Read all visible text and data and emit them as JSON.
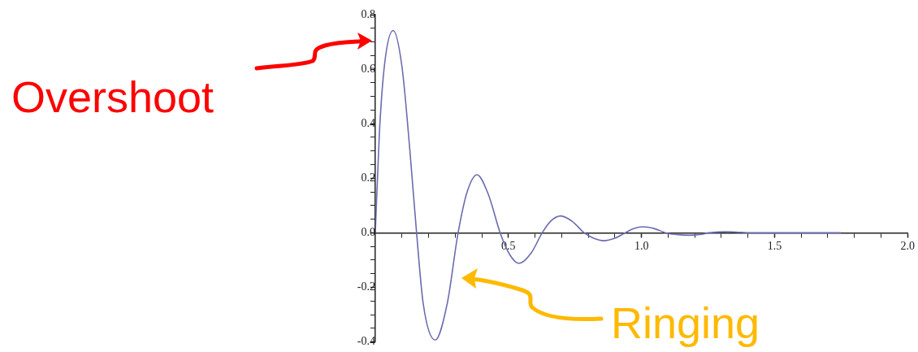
{
  "chart_data": {
    "type": "line",
    "x": [
      0,
      0.015,
      0.035,
      0.067,
      0.1,
      0.13,
      0.155,
      0.18,
      0.225,
      0.27,
      0.311,
      0.345,
      0.382,
      0.425,
      0.469,
      0.505,
      0.54,
      0.585,
      0.627,
      0.66,
      0.697,
      0.74,
      0.785,
      0.82,
      0.858,
      0.9,
      0.939,
      0.97,
      1.005,
      1.05,
      1.091,
      1.13,
      1.178,
      1.22,
      1.254,
      1.29,
      1.325,
      1.37,
      1.42,
      1.5,
      1.6,
      1.75
    ],
    "series": [
      {
        "color": "#6b6bb0",
        "values": [
          0,
          0.36,
          0.62,
          0.742,
          0.61,
          0.3,
          0,
          -0.26,
          -0.393,
          -0.26,
          0,
          0.15,
          0.213,
          0.14,
          0,
          -0.08,
          -0.112,
          -0.075,
          0,
          0.044,
          0.062,
          0.042,
          0,
          -0.02,
          -0.029,
          -0.02,
          0,
          0.015,
          0.022,
          0.015,
          0,
          -0.006,
          -0.009,
          -0.006,
          0,
          0.003,
          0.004,
          0.002,
          0,
          0,
          0,
          0
        ]
      }
    ],
    "xlim": [
      0,
      2
    ],
    "ylim": [
      -0.4,
      0.8
    ],
    "xticks": [
      {
        "value": 0.1,
        "label": null
      },
      {
        "value": 0.2,
        "label": null
      },
      {
        "value": 0.3,
        "label": null
      },
      {
        "value": 0.4,
        "label": null
      },
      {
        "value": 0.5,
        "label": "0.5"
      },
      {
        "value": 0.6,
        "label": null
      },
      {
        "value": 0.7,
        "label": null
      },
      {
        "value": 0.8,
        "label": null
      },
      {
        "value": 0.9,
        "label": null
      },
      {
        "value": 1,
        "label": "1.0"
      },
      {
        "value": 1.1,
        "label": null
      },
      {
        "value": 1.2,
        "label": null
      },
      {
        "value": 1.3,
        "label": null
      },
      {
        "value": 1.4,
        "label": null
      },
      {
        "value": 1.5,
        "label": "1.5"
      },
      {
        "value": 1.6,
        "label": null
      },
      {
        "value": 1.7,
        "label": null
      },
      {
        "value": 1.8,
        "label": null
      },
      {
        "value": 1.9,
        "label": null
      },
      {
        "value": 2,
        "label": "2.0"
      }
    ],
    "yticks": [
      {
        "value": -0.4,
        "label": "-0.4"
      },
      {
        "value": -0.35,
        "label": null
      },
      {
        "value": -0.3,
        "label": null
      },
      {
        "value": -0.25,
        "label": null
      },
      {
        "value": -0.2,
        "label": "-0.2"
      },
      {
        "value": -0.15,
        "label": null
      },
      {
        "value": -0.1,
        "label": null
      },
      {
        "value": -0.05,
        "label": null
      },
      {
        "value": 0,
        "label": "0.0"
      },
      {
        "value": 0.05,
        "label": null
      },
      {
        "value": 0.1,
        "label": null
      },
      {
        "value": 0.15,
        "label": null
      },
      {
        "value": 0.2,
        "label": "0.2"
      },
      {
        "value": 0.25,
        "label": null
      },
      {
        "value": 0.3,
        "label": null
      },
      {
        "value": 0.35,
        "label": null
      },
      {
        "value": 0.4,
        "label": "0.4"
      },
      {
        "value": 0.45,
        "label": null
      },
      {
        "value": 0.5,
        "label": null
      },
      {
        "value": 0.55,
        "label": null
      },
      {
        "value": 0.6,
        "label": "0.6"
      },
      {
        "value": 0.65,
        "label": null
      },
      {
        "value": 0.7,
        "label": null
      },
      {
        "value": 0.75,
        "label": null
      },
      {
        "value": 0.8,
        "label": "0.8"
      }
    ],
    "grid": false,
    "legend": false,
    "marker": "none",
    "line_style": "solid",
    "annotations": [
      "Overshoot",
      "Ringing"
    ]
  }
}
